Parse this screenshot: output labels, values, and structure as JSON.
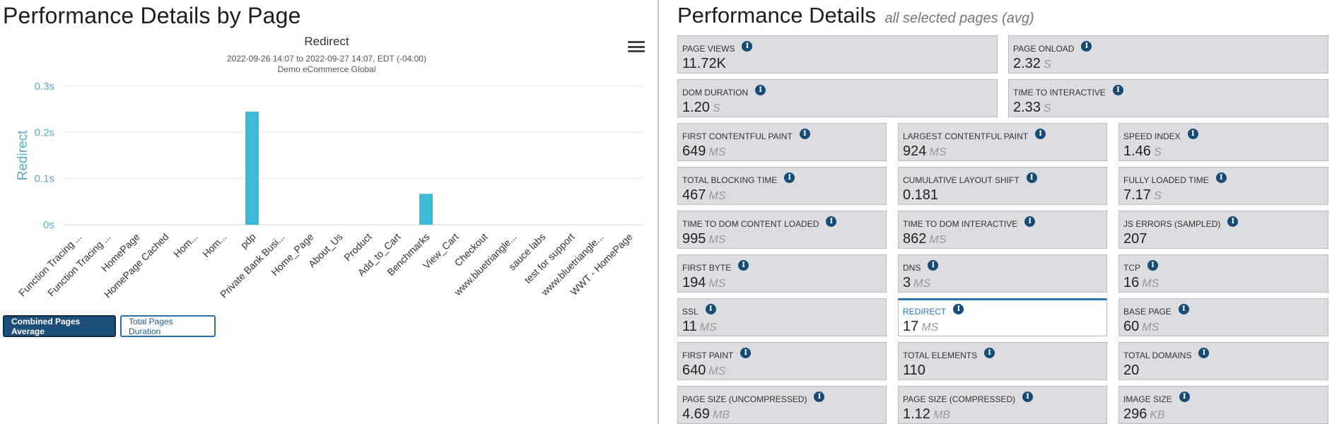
{
  "left": {
    "title": "Performance Details by Page",
    "buttons": {
      "combined": "Combined Pages Average",
      "total": "Total Pages Duration"
    }
  },
  "chart_data": {
    "type": "bar",
    "title": "Redirect",
    "subtitle": "2022-09-26 14:07 to 2022-09-27 14:07, EDT (-04:00)",
    "subtitle2": "Demo eCommerce Global",
    "ylabel": "Redirect",
    "yticks": [
      "0s",
      "0.1s",
      "0.2s",
      "0.3s"
    ],
    "ylim": [
      0,
      0.3
    ],
    "categories": [
      "Function Tracing ...",
      "Function Tracing ...",
      "HomePage",
      "HomePage Cached",
      "Hom...",
      "Hom...",
      "pdp",
      "Private Bank Busi...",
      "Home_Page",
      "About_Us",
      "Product",
      "Add_to_Cart",
      "Benchmarks",
      "View_Cart",
      "Checkout",
      "www.bluetriangle...",
      "sauce labs",
      "test for support",
      "www.bluetriangle...",
      "WWT - HomePage"
    ],
    "values": [
      0,
      0,
      0,
      0,
      0,
      0,
      0.245,
      0,
      0,
      0,
      0,
      0,
      0.067,
      0,
      0,
      0,
      0,
      0,
      0,
      0
    ],
    "color": "#3fbad6",
    "axis_color": "#5aa9c9"
  },
  "right": {
    "title": "Performance Details",
    "subtitle": "all selected pages (avg)",
    "cards": [
      {
        "label": "Page Views",
        "value": "11.72K",
        "unit": ""
      },
      {
        "label": "Page Onload",
        "value": "2.32",
        "unit": "S"
      },
      {
        "label": "DOM Duration",
        "value": "1.20",
        "unit": "S"
      },
      {
        "label": "Time to Interactive",
        "value": "2.33",
        "unit": "S"
      },
      {
        "label": "First Contentful Paint",
        "value": "649",
        "unit": "MS"
      },
      {
        "label": "Largest Contentful Paint",
        "value": "924",
        "unit": "MS"
      },
      {
        "label": "Speed Index",
        "value": "1.46",
        "unit": "S"
      },
      {
        "label": "Total Blocking Time",
        "value": "467",
        "unit": "MS"
      },
      {
        "label": "Cumulative Layout Shift",
        "value": "0.181",
        "unit": ""
      },
      {
        "label": "Fully Loaded Time",
        "value": "7.17",
        "unit": "S"
      },
      {
        "label": "Time to DOM Content Loaded",
        "value": "995",
        "unit": "MS"
      },
      {
        "label": "Time to DOM Interactive",
        "value": "862",
        "unit": "MS"
      },
      {
        "label": "JS Errors (Sampled)",
        "value": "207",
        "unit": ""
      },
      {
        "label": "First Byte",
        "value": "194",
        "unit": "MS"
      },
      {
        "label": "DNS",
        "value": "3",
        "unit": "MS"
      },
      {
        "label": "TCP",
        "value": "16",
        "unit": "MS"
      },
      {
        "label": "SSL",
        "value": "11",
        "unit": "MS"
      },
      {
        "label": "Redirect",
        "value": "17",
        "unit": "MS"
      },
      {
        "label": "Base Page",
        "value": "60",
        "unit": "MS"
      },
      {
        "label": "First Paint",
        "value": "640",
        "unit": "MS"
      },
      {
        "label": "Total Elements",
        "value": "110",
        "unit": ""
      },
      {
        "label": "Total Domains",
        "value": "20",
        "unit": ""
      },
      {
        "label": "Page Size (Uncompressed)",
        "value": "4.69",
        "unit": "MB"
      },
      {
        "label": "Page Size (Compressed)",
        "value": "1.12",
        "unit": "MB"
      },
      {
        "label": "Image Size",
        "value": "296",
        "unit": "KB"
      }
    ]
  }
}
